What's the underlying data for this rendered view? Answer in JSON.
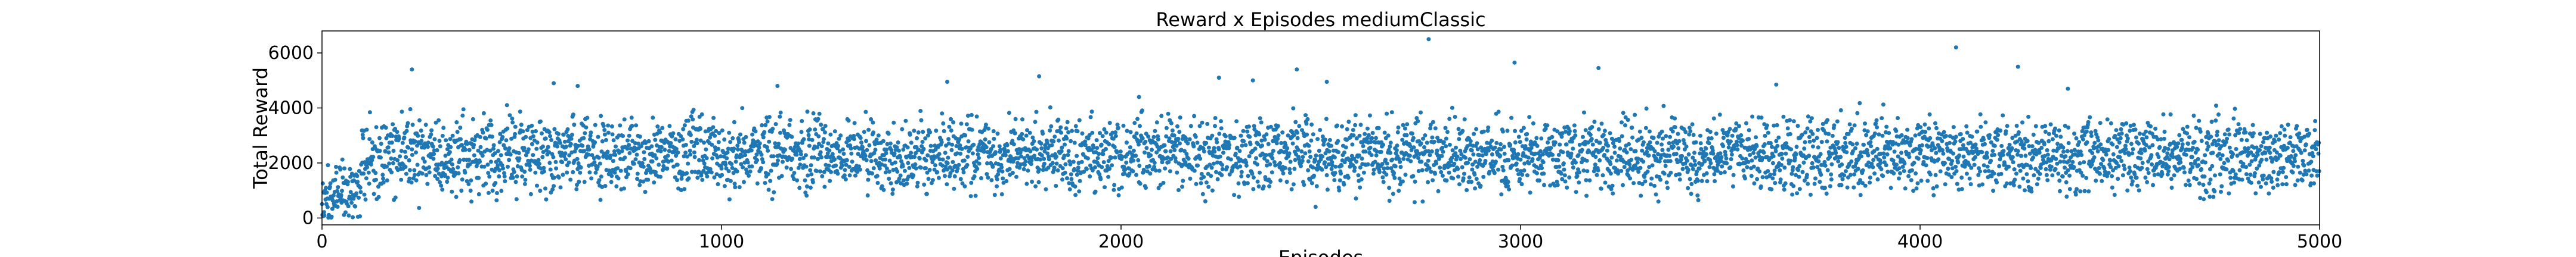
{
  "chart_data": {
    "type": "scatter",
    "title": "Reward x Episodes mediumClassic",
    "xlabel": "Episodes",
    "ylabel": "Total Reward",
    "xlim": [
      0,
      5000
    ],
    "ylim": [
      -250,
      6800
    ],
    "xticks": [
      0,
      1000,
      2000,
      3000,
      4000,
      5000
    ],
    "yticks": [
      0,
      2000,
      4000,
      6000
    ],
    "grid": false,
    "marker_color": "#1f77b4",
    "n_points": 5000,
    "distribution": {
      "typical_band": [
        0,
        4000
      ],
      "dense_band": [
        1500,
        3500
      ],
      "segments": [
        {
          "x": [
            0,
            100
          ],
          "center": 900,
          "spread": 800
        },
        {
          "x": [
            100,
            500
          ],
          "center": 2300,
          "spread": 1100
        },
        {
          "x": [
            500,
            5000
          ],
          "center": 2300,
          "spread": 1000
        }
      ]
    },
    "outliers": [
      {
        "x": 225,
        "y": 5400
      },
      {
        "x": 580,
        "y": 4900
      },
      {
        "x": 640,
        "y": 4800
      },
      {
        "x": 1140,
        "y": 4800
      },
      {
        "x": 1565,
        "y": 4950
      },
      {
        "x": 1795,
        "y": 5150
      },
      {
        "x": 2045,
        "y": 4400
      },
      {
        "x": 2245,
        "y": 5100
      },
      {
        "x": 2330,
        "y": 5000
      },
      {
        "x": 2440,
        "y": 5400
      },
      {
        "x": 2515,
        "y": 4950
      },
      {
        "x": 2770,
        "y": 6500
      },
      {
        "x": 2985,
        "y": 5650
      },
      {
        "x": 3195,
        "y": 5450
      },
      {
        "x": 3640,
        "y": 4850
      },
      {
        "x": 4090,
        "y": 6200
      },
      {
        "x": 4245,
        "y": 5500
      },
      {
        "x": 4370,
        "y": 4700
      }
    ]
  }
}
